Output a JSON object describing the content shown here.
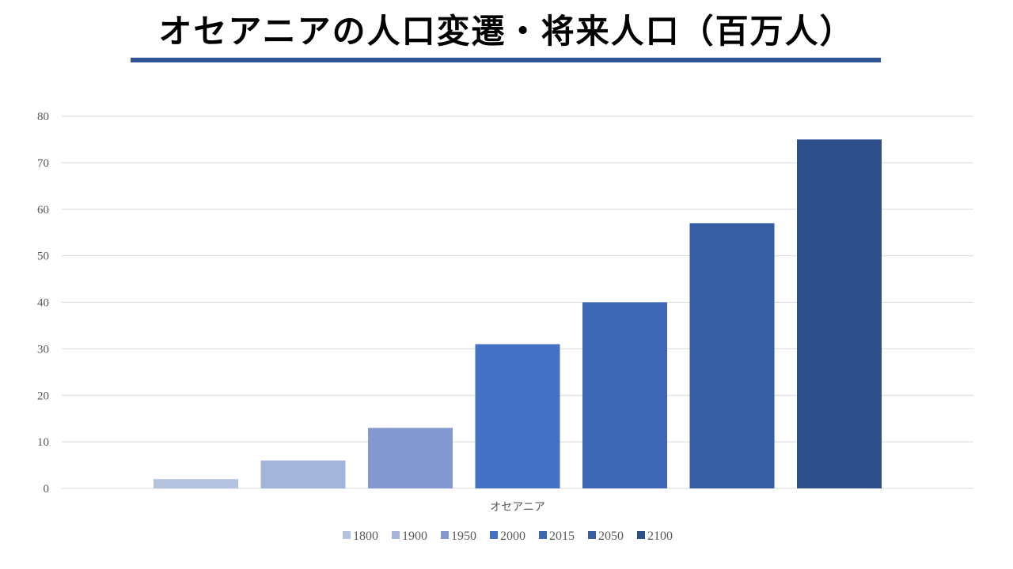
{
  "title": "オセアニアの人口変遷・将来人口（百万人）",
  "colors": {
    "title_rule": "#2F5597",
    "grid": "#D9D9D9",
    "axis_text": "#595959"
  },
  "chart_data": {
    "type": "bar",
    "categories": [
      "オセアニア"
    ],
    "series": [
      {
        "name": "1800",
        "values": [
          2
        ],
        "color": "#B4C3E0"
      },
      {
        "name": "1900",
        "values": [
          6
        ],
        "color": "#A4B5DB"
      },
      {
        "name": "1950",
        "values": [
          13
        ],
        "color": "#8499CF"
      },
      {
        "name": "2000",
        "values": [
          31
        ],
        "color": "#4472C4"
      },
      {
        "name": "2015",
        "values": [
          40
        ],
        "color": "#3D67B5"
      },
      {
        "name": "2050",
        "values": [
          57
        ],
        "color": "#365EA3"
      },
      {
        "name": "2100",
        "values": [
          75
        ],
        "color": "#2F4F8A"
      }
    ],
    "ylim": [
      0,
      80
    ],
    "yticks": [
      0,
      10,
      20,
      30,
      40,
      50,
      60,
      70,
      80
    ],
    "grid": true,
    "legend_position": "bottom"
  }
}
